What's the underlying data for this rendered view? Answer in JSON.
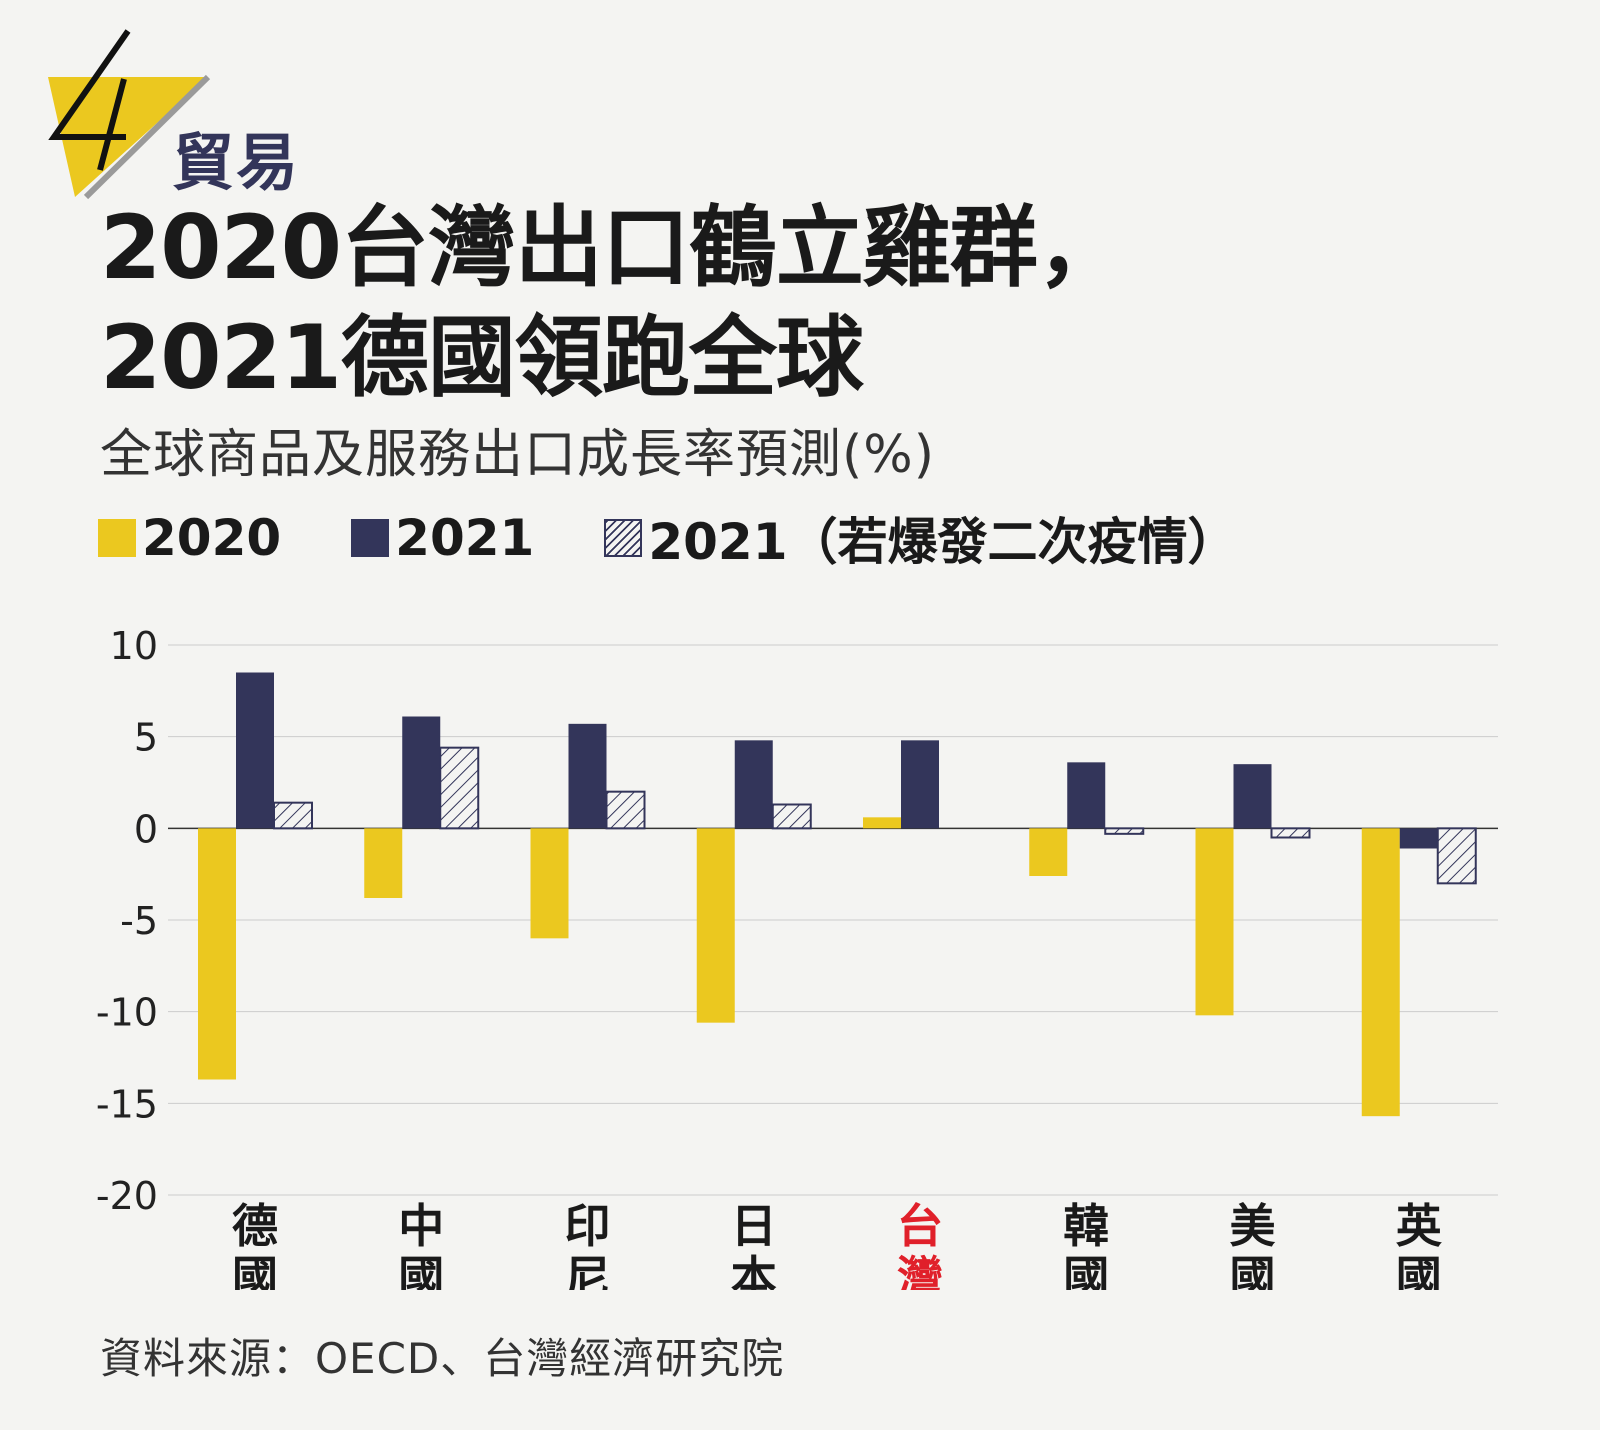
{
  "badge": {
    "number": "4",
    "color": "#ebc81f"
  },
  "section_label": "貿易",
  "title_line1": "2020台灣出口鶴立雞群，",
  "title_line2": "2021德國領跑全球",
  "subtitle": "全球商品及服務出口成長率預測(%)",
  "legend": [
    {
      "label": "2020",
      "style": "yellow"
    },
    {
      "label": "2021",
      "style": "navy"
    },
    {
      "label": "2021（若爆發二次疫情）",
      "style": "hatch"
    }
  ],
  "source": "資料來源：OECD、台灣經濟研究院",
  "colors": {
    "y2020": "#ebc81f",
    "y2021": "#33355a",
    "highlight": "#e0202a",
    "grid": "#cccccc"
  },
  "chart_data": {
    "type": "bar",
    "categories": [
      "德國",
      "中國",
      "印尼",
      "日本",
      "台灣",
      "韓國",
      "美國",
      "英國"
    ],
    "highlight_category": "台灣",
    "series": [
      {
        "name": "2020",
        "values": [
          -13.7,
          -3.8,
          -6.0,
          -10.6,
          0.6,
          -2.6,
          -10.2,
          -15.7
        ]
      },
      {
        "name": "2021",
        "values": [
          8.5,
          6.1,
          5.7,
          4.8,
          4.8,
          3.6,
          3.5,
          -1.1
        ]
      },
      {
        "name": "2021（若爆發二次疫情）",
        "values": [
          1.4,
          4.4,
          2.0,
          1.3,
          0,
          -0.3,
          -0.5,
          -3.0
        ]
      }
    ],
    "ylim": [
      -20,
      10
    ],
    "yticks": [
      10,
      5,
      0,
      -5,
      -10,
      -15,
      -20
    ],
    "grid": true,
    "legend_position": "top-left"
  }
}
